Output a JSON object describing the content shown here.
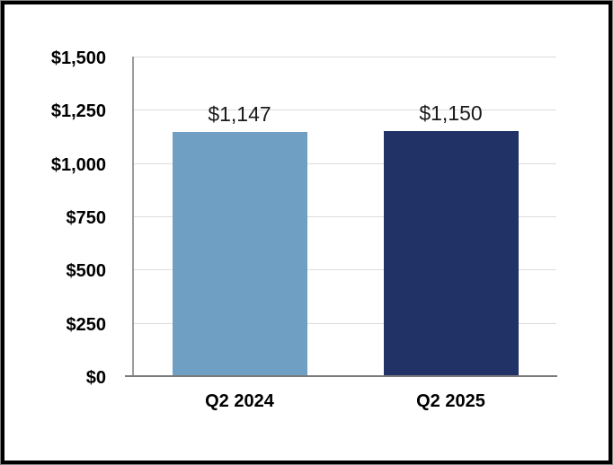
{
  "chart_data": {
    "type": "bar",
    "title": "",
    "xlabel": "",
    "ylabel": "",
    "categories": [
      "Q2 2024",
      "Q2 2025"
    ],
    "values": [
      1147,
      1150
    ],
    "data_labels": [
      "$1,147",
      "$1,150"
    ],
    "bar_colors": [
      "#6FA0C3",
      "#213266"
    ],
    "ylim": [
      0,
      1500
    ],
    "yticks": [
      {
        "value": 0,
        "label": "$0"
      },
      {
        "value": 250,
        "label": "$250"
      },
      {
        "value": 500,
        "label": "$500"
      },
      {
        "value": 750,
        "label": "$750"
      },
      {
        "value": 1000,
        "label": "$1,000"
      },
      {
        "value": 1250,
        "label": "$1,250"
      },
      {
        "value": 1500,
        "label": "$1,500"
      }
    ],
    "grid": "horizontal",
    "legend": "none"
  },
  "colors": {
    "background": "#FFFFFF",
    "frame_border": "#000000",
    "frame_outline": "#808080",
    "gridline": "#DCDCDC",
    "y_axis_line": "#9B9B9B",
    "x_axis_line": "#7A7A7A",
    "tick_label": "#000000",
    "data_label": "#1A1A1A"
  }
}
